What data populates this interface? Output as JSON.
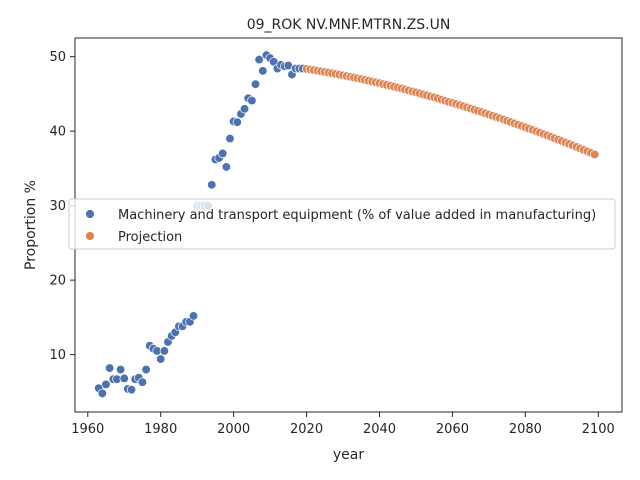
{
  "chart_data": {
    "type": "scatter",
    "title": "09_ROK NV.MNF.MTRN.ZS.UN",
    "xlabel": "year",
    "ylabel": "Proportion %",
    "xlim": [
      1956.5,
      2106.5
    ],
    "ylim": [
      2.3,
      52.5
    ],
    "xticks": [
      1960,
      1980,
      2000,
      2020,
      2040,
      2060,
      2080,
      2100
    ],
    "yticks": [
      10,
      20,
      30,
      40,
      50
    ],
    "grid": false,
    "legend_position": "center-left",
    "series": [
      {
        "name": "Machinery and transport equipment (% of value added in manufacturing)",
        "color": "#4c72b0",
        "points": [
          [
            1963,
            5.5
          ],
          [
            1964,
            4.8
          ],
          [
            1965,
            6.0
          ],
          [
            1966,
            8.2
          ],
          [
            1967,
            6.7
          ],
          [
            1968,
            6.7
          ],
          [
            1969,
            8.0
          ],
          [
            1970,
            6.8
          ],
          [
            1971,
            5.4
          ],
          [
            1972,
            5.3
          ],
          [
            1973,
            6.7
          ],
          [
            1974,
            6.9
          ],
          [
            1975,
            6.3
          ],
          [
            1976,
            8.0
          ],
          [
            1977,
            11.2
          ],
          [
            1978,
            10.8
          ],
          [
            1979,
            10.5
          ],
          [
            1980,
            9.4
          ],
          [
            1981,
            10.5
          ],
          [
            1982,
            11.7
          ],
          [
            1983,
            12.5
          ],
          [
            1984,
            13.0
          ],
          [
            1985,
            13.8
          ],
          [
            1986,
            13.8
          ],
          [
            1987,
            14.4
          ],
          [
            1988,
            14.4
          ],
          [
            1989,
            15.2
          ],
          [
            1990,
            30.0
          ],
          [
            1991,
            30.0
          ],
          [
            1992,
            30.0
          ],
          [
            1993,
            30.0
          ],
          [
            1994,
            32.8
          ],
          [
            1995,
            36.2
          ],
          [
            1996,
            36.4
          ],
          [
            1997,
            37.0
          ],
          [
            1998,
            35.2
          ],
          [
            1999,
            39.0
          ],
          [
            2000,
            41.3
          ],
          [
            2001,
            41.2
          ],
          [
            2002,
            42.3
          ],
          [
            2003,
            43.0
          ],
          [
            2004,
            44.4
          ],
          [
            2005,
            44.1
          ],
          [
            2006,
            46.3
          ],
          [
            2007,
            49.6
          ],
          [
            2008,
            48.1
          ],
          [
            2009,
            50.2
          ],
          [
            2010,
            49.8
          ],
          [
            2011,
            49.3
          ],
          [
            2012,
            48.4
          ],
          [
            2013,
            48.9
          ],
          [
            2014,
            48.7
          ],
          [
            2015,
            48.8
          ],
          [
            2016,
            47.6
          ],
          [
            2017,
            48.4
          ],
          [
            2018,
            48.4
          ],
          [
            2019,
            48.4
          ]
        ]
      },
      {
        "name": "Projection",
        "color": "#dd8452",
        "x_start": 2020,
        "x_end": 2100,
        "values": [
          48.35,
          48.27,
          48.19,
          48.11,
          48.03,
          47.94,
          47.86,
          47.77,
          47.68,
          47.58,
          47.49,
          47.39,
          47.29,
          47.19,
          47.09,
          46.99,
          46.88,
          46.77,
          46.66,
          46.55,
          46.44,
          46.32,
          46.2,
          46.09,
          45.96,
          45.84,
          45.72,
          45.59,
          45.46,
          45.33,
          45.2,
          45.07,
          44.93,
          44.8,
          44.66,
          44.52,
          44.38,
          44.23,
          44.09,
          43.94,
          43.79,
          43.64,
          43.49,
          43.34,
          43.19,
          43.03,
          42.87,
          42.71,
          42.55,
          42.39,
          42.23,
          42.06,
          41.9,
          41.73,
          41.56,
          41.39,
          41.22,
          41.04,
          40.87,
          40.69,
          40.51,
          40.33,
          40.15,
          39.97,
          39.79,
          39.6,
          39.42,
          39.23,
          39.04,
          38.85,
          38.66,
          38.46,
          38.27,
          38.07,
          37.88,
          37.68,
          37.48,
          37.28,
          37.08,
          36.87
        ]
      }
    ]
  }
}
